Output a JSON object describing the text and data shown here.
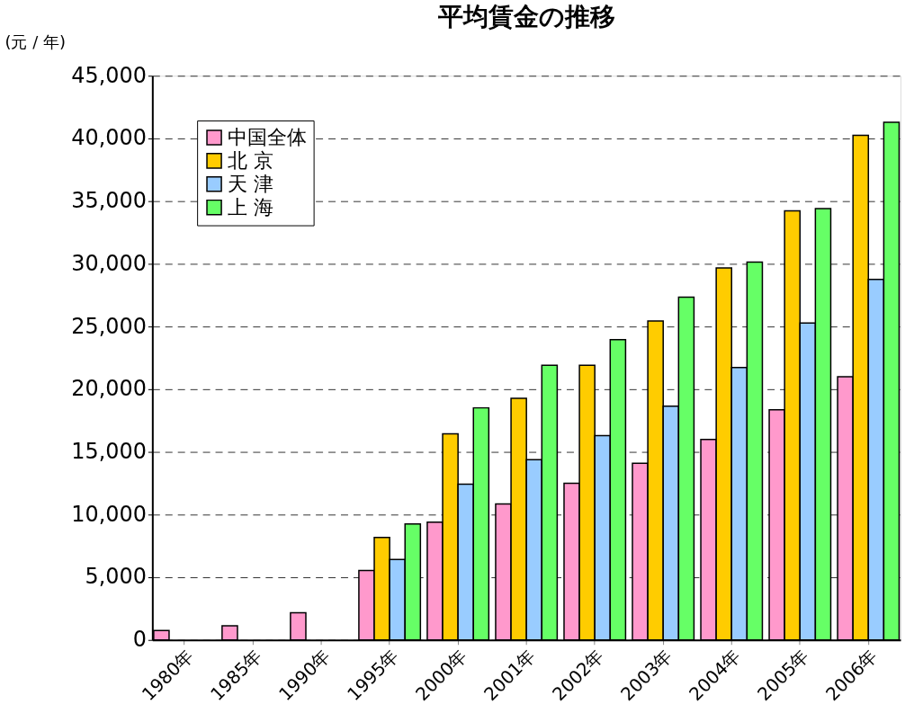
{
  "chart_data": {
    "type": "bar",
    "title": "平均賃金の推移",
    "ylabel": "(元 / 年)",
    "categories": [
      "1980年",
      "1985年",
      "1990年",
      "1995年",
      "2000年",
      "2001年",
      "2002年",
      "2003年",
      "2004年",
      "2005年",
      "2006年"
    ],
    "series": [
      {
        "name": "中国全体",
        "color": "#ff99cc",
        "values": [
          750,
          1130,
          2170,
          5540,
          9390,
          10850,
          12500,
          14090,
          15990,
          18350,
          20990
        ]
      },
      {
        "name": "北 京",
        "color": "#ffcc00",
        "values": [
          null,
          null,
          null,
          8180,
          16440,
          19270,
          21900,
          25440,
          29670,
          34230,
          40250
        ]
      },
      {
        "name": "天 津",
        "color": "#99ccff",
        "values": [
          null,
          null,
          null,
          6420,
          12430,
          14370,
          16290,
          18650,
          21730,
          25270,
          28760
        ]
      },
      {
        "name": "上 海",
        "color": "#66ff66",
        "values": [
          null,
          null,
          null,
          9250,
          18510,
          21900,
          23960,
          27340,
          30140,
          34400,
          41290
        ]
      }
    ],
    "ylim": [
      0,
      45000
    ],
    "yticks": [
      0,
      {
        "value": 5000,
        "label": "5,000"
      },
      {
        "value": 10000,
        "label": "10,000"
      },
      {
        "value": 15000,
        "label": "15,000"
      },
      {
        "value": 20000,
        "label": "20,000"
      },
      {
        "value": 25000,
        "label": "25,000"
      },
      {
        "value": 30000,
        "label": "30,000"
      },
      {
        "value": 35000,
        "label": "35,000"
      },
      {
        "value": 40000,
        "label": "40,000"
      },
      {
        "value": 45000,
        "label": "45,000"
      }
    ],
    "grid": "y",
    "legend": "top left"
  }
}
